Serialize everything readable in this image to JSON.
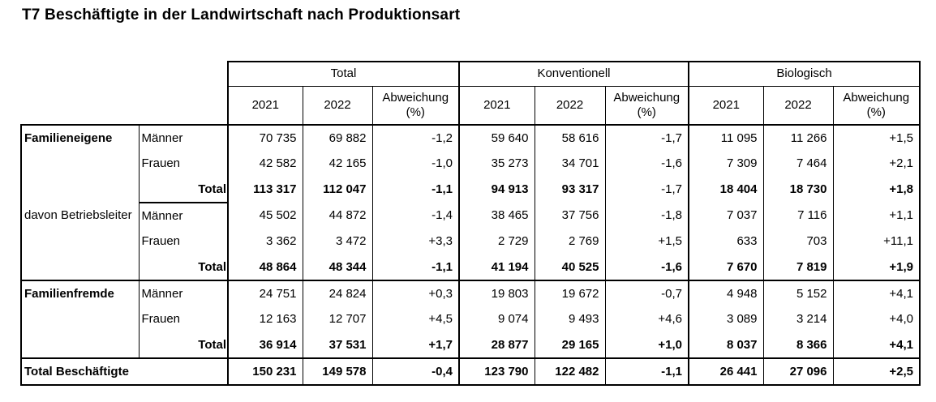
{
  "title": "T7 Beschäftigte in der Landwirtschaft nach Produktionsart",
  "table": {
    "groups": [
      "Total",
      "Konventionell",
      "Biologisch"
    ],
    "sub_cols": [
      "2021",
      "2022",
      "Abweichung (%)"
    ],
    "rows": [
      {
        "label": "Familieneigene",
        "bold": true,
        "sub": "Männer",
        "values": [
          "70 735",
          "69 882",
          "-1,2",
          "59 640",
          "58 616",
          "-1,7",
          "11 095",
          "11 266",
          "+1,5"
        ]
      },
      {
        "sub": "Frauen",
        "values": [
          "42 582",
          "42 165",
          "-1,0",
          "35 273",
          "34 701",
          "-1,6",
          "7 309",
          "7 464",
          "+2,1"
        ]
      },
      {
        "sub": "Total",
        "total": true,
        "normal": [
          5
        ],
        "values": [
          "113 317",
          "112 047",
          "-1,1",
          "94 913",
          "93 317",
          "-1,7",
          "18 404",
          "18 730",
          "+1,8"
        ]
      },
      {
        "label": "davon Betriebsleiter",
        "bold": false,
        "sub": "Männer",
        "values": [
          "45 502",
          "44 872",
          "-1,4",
          "38 465",
          "37 756",
          "-1,8",
          "7 037",
          "7 116",
          "+1,1"
        ]
      },
      {
        "sub": "Frauen",
        "values": [
          "3 362",
          "3 472",
          "+3,3",
          "2 729",
          "2 769",
          "+1,5",
          "633",
          "703",
          "+11,1"
        ]
      },
      {
        "sub": "Total",
        "total": true,
        "values": [
          "48 864",
          "48 344",
          "-1,1",
          "41 194",
          "40 525",
          "-1,6",
          "7 670",
          "7 819",
          "+1,9"
        ]
      },
      {
        "label": "Familienfremde",
        "bold": true,
        "sub": "Männer",
        "values": [
          "24 751",
          "24 824",
          "+0,3",
          "19 803",
          "19 672",
          "-0,7",
          "4 948",
          "5 152",
          "+4,1"
        ]
      },
      {
        "sub": "Frauen",
        "values": [
          "12 163",
          "12 707",
          "+4,5",
          "9 074",
          "9 493",
          "+4,6",
          "3 089",
          "3 214",
          "+4,0"
        ]
      },
      {
        "sub": "Total",
        "total": true,
        "values": [
          "36 914",
          "37 531",
          "+1,7",
          "28 877",
          "29 165",
          "+1,0",
          "8 037",
          "8 366",
          "+4,1"
        ]
      },
      {
        "label": "Total Beschäftigte",
        "bold": true,
        "label_colspan": 2,
        "total": true,
        "values": [
          "150 231",
          "149 578",
          "-0,4",
          "123 790",
          "122 482",
          "-1,1",
          "26 441",
          "27 096",
          "+2,5"
        ]
      }
    ]
  }
}
